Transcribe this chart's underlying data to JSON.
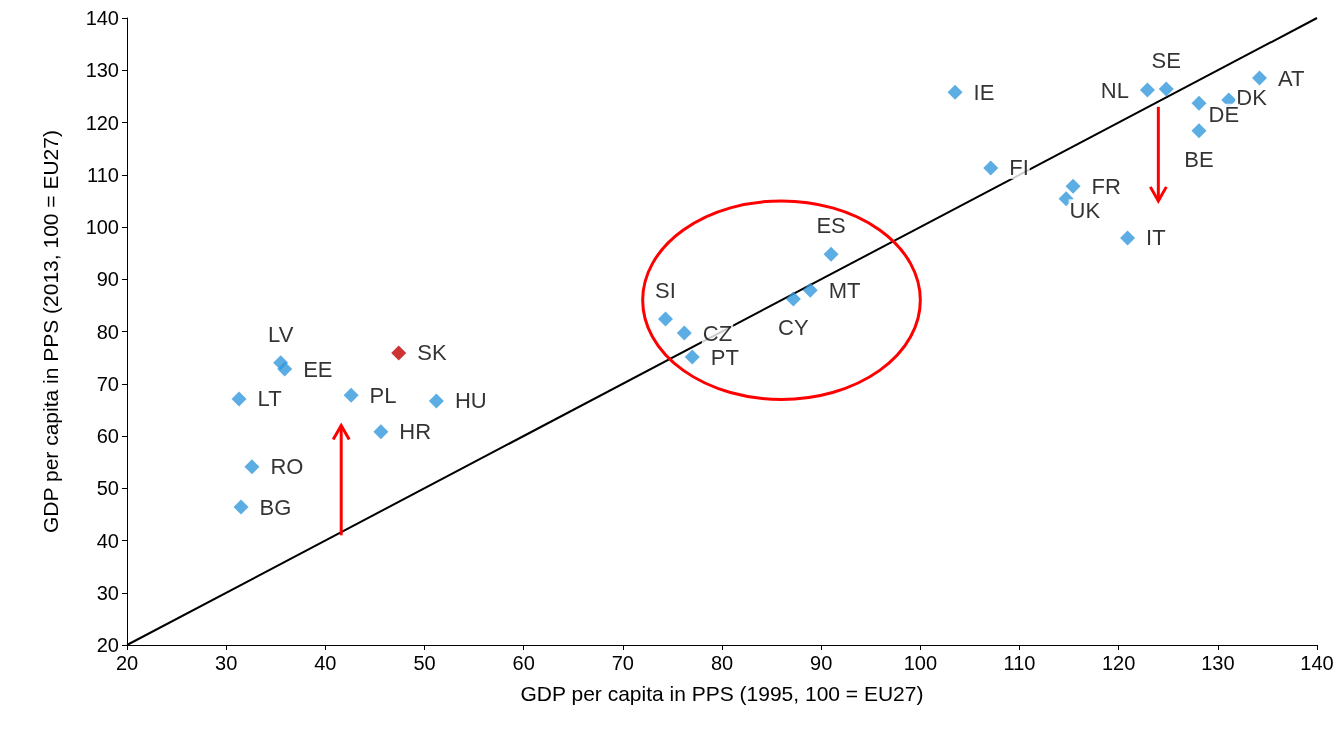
{
  "chart_data": {
    "type": "scatter",
    "xlabel": "GDP per capita in PPS (1995, 100 = EU27)",
    "ylabel": "GDP per capita in PPS (2013, 100 = EU27)",
    "xlim": [
      20,
      140
    ],
    "xticks": [
      20,
      30,
      40,
      50,
      60,
      70,
      80,
      90,
      100,
      110,
      120,
      130,
      140
    ],
    "ylim": [
      20,
      140
    ],
    "yticks": [
      20,
      30,
      40,
      50,
      60,
      70,
      80,
      90,
      100,
      110,
      120,
      130,
      140
    ],
    "grid": false,
    "marker": "diamond",
    "series": [
      {
        "color": "#3399dd",
        "x": [
          35.5,
          35.9,
          31.3,
          32.6,
          31.5,
          47.4,
          42.6,
          51.2,
          45.6,
          74.3,
          76.2,
          77.0,
          87.2,
          88.9,
          91.0,
          103.5,
          107.1,
          115.4,
          114.7,
          120.9,
          122.9,
          124.8,
          134.2,
          131.1,
          128.1,
          128.1
        ],
        "values": [
          74.0,
          72.8,
          67.1,
          54.1,
          46.4,
          75.9,
          67.8,
          66.7,
          60.8,
          82.4,
          79.7,
          75.1,
          86.2,
          87.9,
          94.8,
          125.8,
          111.3,
          107.8,
          105.4,
          97.9,
          126.2,
          126.4,
          128.5,
          124.3,
          123.7,
          118.4
        ],
        "colors": [
          "#3399dd",
          "#3399dd",
          "#3399dd",
          "#3399dd",
          "#3399dd",
          "#c00000",
          "#3399dd",
          "#3399dd",
          "#3399dd",
          "#3399dd",
          "#3399dd",
          "#3399dd",
          "#3399dd",
          "#3399dd",
          "#3399dd",
          "#3399dd",
          "#3399dd",
          "#3399dd",
          "#3399dd",
          "#3399dd",
          "#3399dd",
          "#3399dd",
          "#3399dd",
          "#3399dd",
          "#3399dd",
          "#3399dd"
        ],
        "value_labels": [
          "LV",
          "EE",
          "LT",
          "RO",
          "BG",
          "SK",
          "PL",
          "HU",
          "HR",
          "SI",
          "CZ",
          "PT",
          "CY",
          "MT",
          "ES",
          "IE",
          "FI",
          "FR",
          "UK",
          "IT",
          "NL",
          "SE",
          "AT",
          "DK",
          "DE",
          "BE"
        ]
      },
      {
        "type": "line",
        "color": "#000000",
        "marker": "none",
        "x": [
          20,
          140
        ],
        "values": [
          20,
          140
        ]
      }
    ]
  }
}
